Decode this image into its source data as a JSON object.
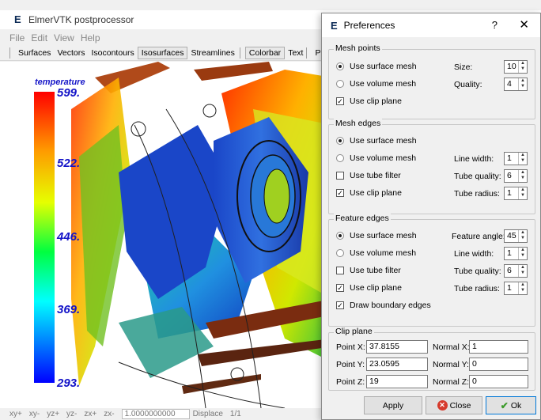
{
  "app": {
    "title": "ElmerVTK postprocessor",
    "logo": "E"
  },
  "menu": [
    "File",
    "Edit",
    "View",
    "Help"
  ],
  "toolbar": {
    "buttons": [
      "Surfaces",
      "Vectors",
      "Isocontours",
      "Isosurfaces",
      "Streamlines",
      "Colorbar",
      "Text",
      "Prefere"
    ]
  },
  "colorbar": {
    "title": "temperature",
    "labels": [
      "599.",
      "522.",
      "446.",
      "369.",
      "293."
    ],
    "range": [
      293,
      599
    ]
  },
  "statusbar": {
    "view_buttons": [
      "xy+",
      "xy-",
      "yz+",
      "yz-",
      "zx+",
      "zx-"
    ],
    "displace_value": "1.0000000000",
    "displace_label": "Displace",
    "page": "1/1"
  },
  "dialog": {
    "logo": "E",
    "title": "Preferences",
    "help": "?",
    "close": "✕",
    "mesh_points": {
      "title": "Mesh points",
      "use_surface_mesh": "Use surface mesh",
      "use_volume_mesh": "Use volume mesh",
      "use_clip_plane": "Use clip plane",
      "selected": "surface",
      "clip_checked": true,
      "size_label": "Size:",
      "size_value": "10",
      "quality_label": "Quality:",
      "quality_value": "4"
    },
    "mesh_edges": {
      "title": "Mesh edges",
      "use_surface_mesh": "Use surface mesh",
      "use_volume_mesh": "Use volume mesh",
      "use_tube_filter": "Use tube filter",
      "use_clip_plane": "Use clip plane",
      "selected": "surface",
      "tube_checked": false,
      "clip_checked": true,
      "line_width_label": "Line width:",
      "line_width_value": "1",
      "tube_quality_label": "Tube quality:",
      "tube_quality_value": "6",
      "tube_radius_label": "Tube radius:",
      "tube_radius_value": "1"
    },
    "feature_edges": {
      "title": "Feature edges",
      "use_surface_mesh": "Use surface mesh",
      "use_volume_mesh": "Use volume mesh",
      "use_tube_filter": "Use tube filter",
      "use_clip_plane": "Use clip plane",
      "draw_boundary_edges": "Draw boundary edges",
      "selected": "surface",
      "tube_checked": false,
      "clip_checked": true,
      "boundary_checked": true,
      "feature_angle_label": "Feature angle:",
      "feature_angle_value": "45",
      "line_width_label": "Line width:",
      "line_width_value": "1",
      "tube_quality_label": "Tube quality:",
      "tube_quality_value": "6",
      "tube_radius_label": "Tube radius:",
      "tube_radius_value": "1"
    },
    "clip_plane": {
      "title": "Clip plane",
      "point_x_label": "Point X:",
      "point_x_value": "37.8155",
      "point_y_label": "Point Y:",
      "point_y_value": "23.0595",
      "point_z_label": "Point Z:",
      "point_z_value": "19",
      "normal_x_label": "Normal X:",
      "normal_x_value": "1",
      "normal_y_label": "Normal Y:",
      "normal_y_value": "0",
      "normal_z_label": "Normal Z:",
      "normal_z_value": "0"
    },
    "buttons": {
      "apply": "Apply",
      "close": "Close",
      "ok": "Ok"
    }
  },
  "colors": {
    "accent": "#0078d7",
    "cancel_red": "#d63a2c",
    "ok_green": "#3c9b2b",
    "label_blue": "#1414c8"
  }
}
